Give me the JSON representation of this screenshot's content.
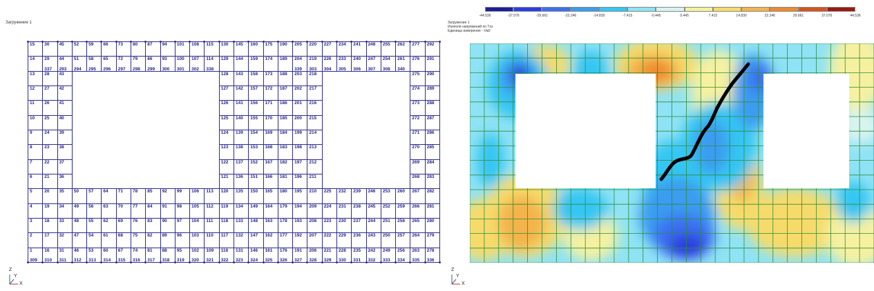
{
  "left_panel": {
    "load_label": "Загружение 1",
    "mesh": {
      "cols": 24,
      "rows": 11,
      "top_numbers": [
        [
          "15",
          "30",
          "45",
          "52",
          "59",
          "66",
          "73",
          "80",
          "87",
          "94",
          "101",
          "108",
          "115",
          "130",
          "145",
          "160",
          "175",
          "190",
          "205",
          "220",
          "227",
          "234",
          "241",
          "248",
          "255",
          "262",
          "277",
          "292"
        ],
        [
          "14",
          "29",
          "44",
          "51",
          "58",
          "65",
          "72",
          "79",
          "86",
          "93",
          "100",
          "107",
          "114",
          "129",
          "144",
          "159",
          "174",
          "189",
          "204",
          "219",
          "226",
          "233",
          "240",
          "247",
          "254",
          "261",
          "276",
          "291"
        ],
        [
          "13",
          "28",
          "43",
          "",
          "",
          "",
          "",
          "",
          "",
          "",
          "",
          "",
          "",
          "128",
          "143",
          "158",
          "173",
          "188",
          "203",
          "218",
          "",
          "",
          "",
          "",
          "",
          "",
          "275",
          "290"
        ],
        [
          "12",
          "27",
          "42",
          "",
          "",
          "",
          "",
          "",
          "",
          "",
          "",
          "",
          "",
          "127",
          "142",
          "157",
          "172",
          "187",
          "202",
          "217",
          "",
          "",
          "",
          "",
          "",
          "",
          "274",
          "289"
        ],
        [
          "11",
          "26",
          "41",
          "",
          "",
          "",
          "",
          "",
          "",
          "",
          "",
          "",
          "",
          "126",
          "141",
          "156",
          "171",
          "186",
          "201",
          "216",
          "",
          "",
          "",
          "",
          "",
          "",
          "273",
          "288"
        ],
        [
          "10",
          "25",
          "40",
          "",
          "",
          "",
          "",
          "",
          "",
          "",
          "",
          "",
          "",
          "125",
          "140",
          "155",
          "170",
          "185",
          "200",
          "215",
          "",
          "",
          "",
          "",
          "",
          "",
          "272",
          "287"
        ],
        [
          "9",
          "24",
          "39",
          "",
          "",
          "",
          "",
          "",
          "",
          "",
          "",
          "",
          "",
          "124",
          "139",
          "154",
          "169",
          "184",
          "199",
          "214",
          "",
          "",
          "",
          "",
          "",
          "",
          "271",
          "286"
        ],
        [
          "8",
          "23",
          "38",
          "",
          "",
          "",
          "",
          "",
          "",
          "",
          "",
          "",
          "",
          "123",
          "138",
          "153",
          "168",
          "183",
          "198",
          "213",
          "",
          "",
          "",
          "",
          "",
          "",
          "270",
          "285"
        ],
        [
          "7",
          "22",
          "37",
          "",
          "",
          "",
          "",
          "",
          "",
          "",
          "",
          "",
          "",
          "122",
          "137",
          "152",
          "167",
          "182",
          "197",
          "212",
          "",
          "",
          "",
          "",
          "",
          "",
          "269",
          "284"
        ],
        [
          "6",
          "21",
          "36",
          "",
          "",
          "",
          "",
          "",
          "",
          "",
          "",
          "",
          "",
          "121",
          "136",
          "151",
          "166",
          "181",
          "196",
          "211",
          "",
          "",
          "",
          "",
          "",
          "",
          "268",
          "283"
        ],
        [
          "5",
          "20",
          "35",
          "50",
          "57",
          "64",
          "71",
          "78",
          "85",
          "92",
          "99",
          "106",
          "113",
          "120",
          "135",
          "150",
          "165",
          "180",
          "195",
          "210",
          "225",
          "232",
          "239",
          "246",
          "253",
          "260",
          "267",
          "282"
        ],
        [
          "4",
          "19",
          "34",
          "49",
          "56",
          "63",
          "70",
          "77",
          "84",
          "91",
          "98",
          "105",
          "112",
          "119",
          "134",
          "149",
          "164",
          "179",
          "194",
          "209",
          "224",
          "231",
          "238",
          "245",
          "252",
          "259",
          "266",
          "281"
        ],
        [
          "3",
          "18",
          "33",
          "48",
          "55",
          "62",
          "69",
          "76",
          "83",
          "90",
          "97",
          "104",
          "111",
          "118",
          "133",
          "148",
          "163",
          "178",
          "193",
          "208",
          "223",
          "230",
          "237",
          "244",
          "251",
          "258",
          "265",
          "280"
        ],
        [
          "2",
          "17",
          "32",
          "47",
          "54",
          "61",
          "68",
          "75",
          "82",
          "89",
          "96",
          "103",
          "110",
          "117",
          "132",
          "147",
          "162",
          "177",
          "192",
          "207",
          "222",
          "229",
          "236",
          "243",
          "250",
          "257",
          "264",
          "279"
        ],
        [
          "1",
          "16",
          "31",
          "46",
          "53",
          "60",
          "67",
          "74",
          "81",
          "88",
          "95",
          "102",
          "109",
          "116",
          "131",
          "146",
          "161",
          "176",
          "191",
          "206",
          "221",
          "228",
          "235",
          "242",
          "249",
          "256",
          "263",
          "278"
        ]
      ],
      "mid_bottom": [
        "",
        "337",
        "293",
        "294",
        "295",
        "296",
        "297",
        "298",
        "299",
        "300",
        "301",
        "302",
        "338",
        "",
        "",
        "",
        "",
        "",
        "339",
        "303",
        "304",
        "305",
        "306",
        "307",
        "308",
        "340",
        ""
      ],
      "bottom": [
        "309",
        "310",
        "311",
        "312",
        "313",
        "314",
        "315",
        "316",
        "317",
        "318",
        "319",
        "320",
        "321",
        "322",
        "323",
        "324",
        "325",
        "326",
        "327",
        "328",
        "329",
        "330",
        "331",
        "332",
        "333",
        "334",
        "335",
        "336"
      ]
    },
    "axes": {
      "z": "Z",
      "y": "Y",
      "x": "X"
    }
  },
  "right_panel": {
    "load_label": "Загружение 1",
    "isolines_label": "Изополя напряжений по Txz",
    "units_label": "Единицы измерения - т/м2",
    "legend": {
      "ticks": [
        "-44.536",
        "-37.076",
        "-29.661",
        "-22.246",
        "-14.830",
        "-7.415",
        "-0.445",
        "0.445",
        "7.415",
        "14.830",
        "22.246",
        "29.661",
        "37.076",
        "44.536"
      ],
      "colors": [
        "#1d1d9a",
        "#2b3ee0",
        "#3a6ff0",
        "#3b9cf0",
        "#35c6f2",
        "#8fe3f4",
        "#d8f4f0",
        "#f6f1a0",
        "#f6db6a",
        "#f2b44c",
        "#ee8a2e",
        "#d8521c",
        "#9a1a10"
      ]
    },
    "axes": {
      "z": "Z",
      "y": "Y",
      "x": "X"
    }
  }
}
